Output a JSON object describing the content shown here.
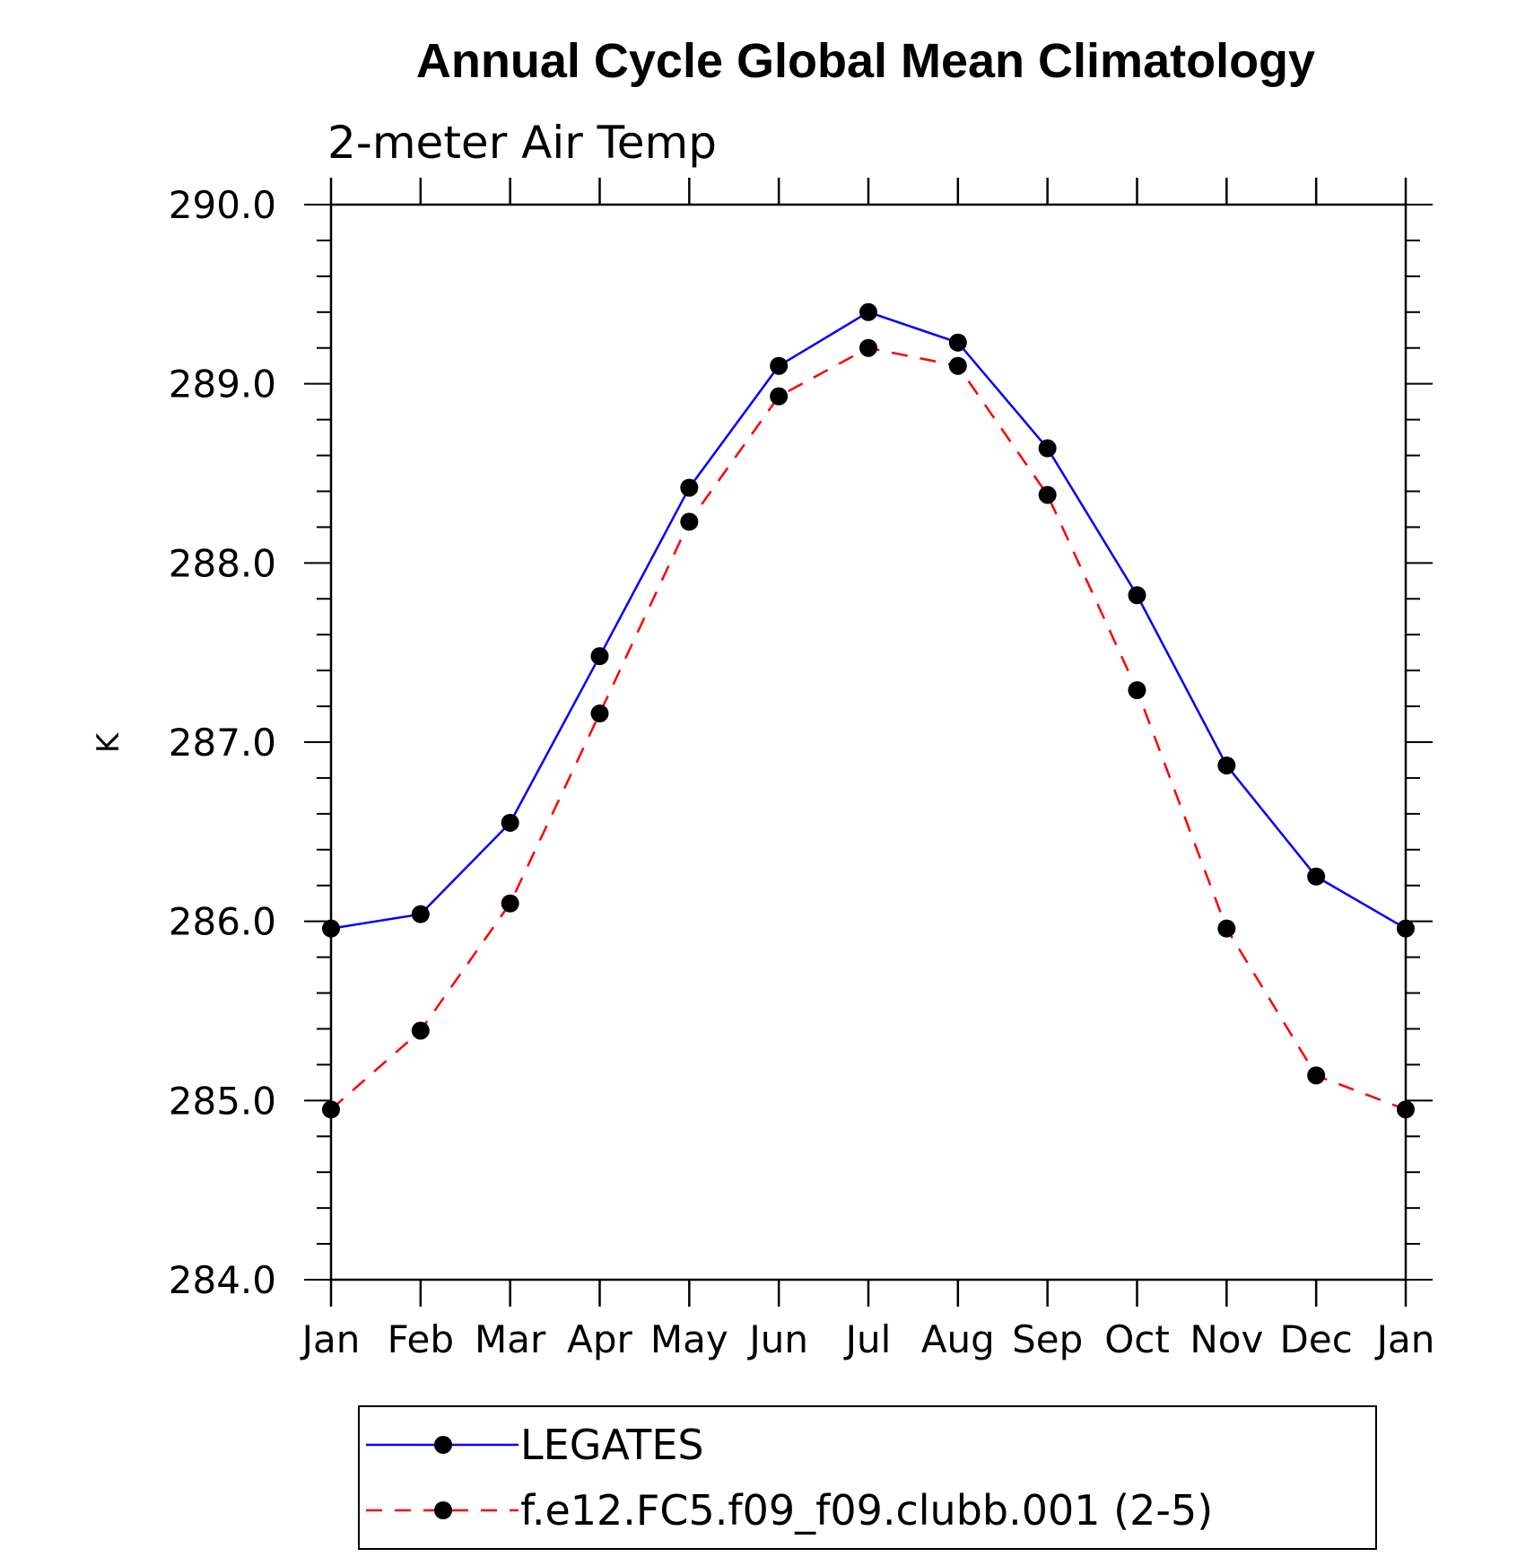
{
  "chart_data": {
    "type": "line",
    "title": "Annual Cycle Global Mean Climatology",
    "subtitle": "2-meter Air Temp",
    "xlabel": "",
    "ylabel": "K",
    "categories": [
      "Jan",
      "Feb",
      "Mar",
      "Apr",
      "May",
      "Jun",
      "Jul",
      "Aug",
      "Sep",
      "Oct",
      "Nov",
      "Dec",
      "Jan"
    ],
    "ylim": [
      284.0,
      290.0
    ],
    "yticks": [
      "284.0",
      "285.0",
      "286.0",
      "287.0",
      "288.0",
      "289.0",
      "290.0"
    ],
    "series": [
      {
        "name": "LEGATES",
        "color": "#0000ff",
        "dash": "solid",
        "values": [
          285.96,
          286.04,
          286.55,
          287.48,
          288.42,
          289.1,
          289.4,
          289.23,
          288.64,
          287.82,
          286.87,
          286.25,
          285.96
        ]
      },
      {
        "name": "f.e12.FC5.f09_f09.clubb.001 (2-5)",
        "color": "#ff0000",
        "dash": "dashed",
        "values": [
          284.95,
          285.39,
          286.1,
          287.16,
          288.23,
          288.93,
          289.2,
          289.1,
          288.38,
          287.29,
          285.96,
          285.14,
          284.95
        ]
      }
    ],
    "legend_position": "bottom"
  }
}
